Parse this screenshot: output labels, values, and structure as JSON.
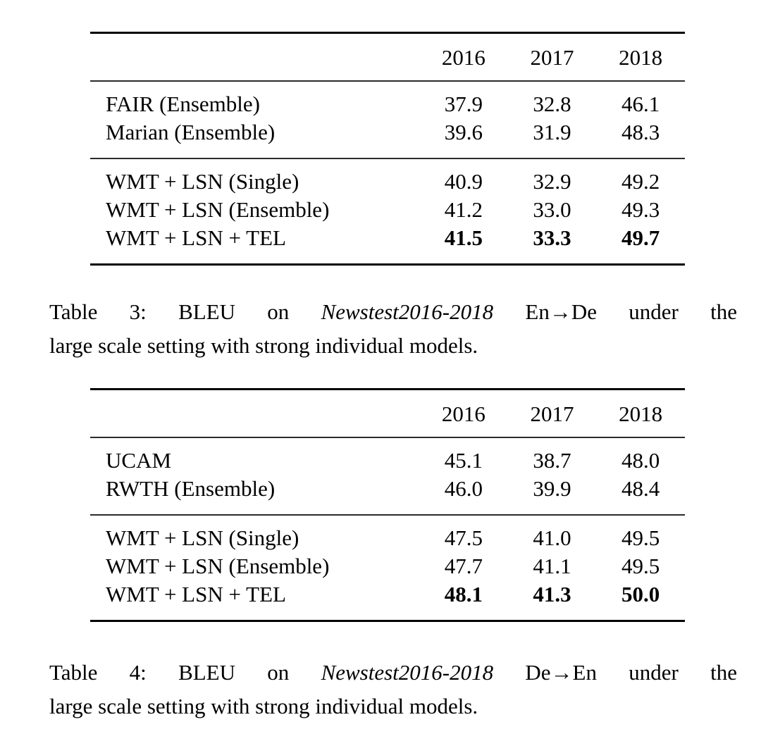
{
  "tables": [
    {
      "name": "table3",
      "columns": [
        "2016",
        "2017",
        "2018"
      ],
      "baselines": [
        {
          "label": "FAIR (Ensemble)",
          "values": [
            "37.9",
            "32.8",
            "46.1"
          ]
        },
        {
          "label": "Marian (Ensemble)",
          "values": [
            "39.6",
            "31.9",
            "48.3"
          ]
        }
      ],
      "ours": [
        {
          "label": "WMT + LSN (Single)",
          "values": [
            "40.9",
            "32.9",
            "49.2"
          ]
        },
        {
          "label": "WMT + LSN (Ensemble)",
          "values": [
            "41.2",
            "33.0",
            "49.3"
          ]
        },
        {
          "label": "WMT + LSN + TEL",
          "values": [
            "41.5",
            "33.3",
            "49.7"
          ],
          "bold_values": true
        }
      ],
      "caption": {
        "line1_prefix": "Table 3: BLEU on ",
        "line1_italic": "Newstest2016-2018",
        "line1_suffix": " En→De under the",
        "line2": "large scale setting with strong individual models."
      }
    },
    {
      "name": "table4",
      "columns": [
        "2016",
        "2017",
        "2018"
      ],
      "baselines": [
        {
          "label": "UCAM",
          "values": [
            "45.1",
            "38.7",
            "48.0"
          ]
        },
        {
          "label": "RWTH (Ensemble)",
          "values": [
            "46.0",
            "39.9",
            "48.4"
          ]
        }
      ],
      "ours": [
        {
          "label": "WMT + LSN (Single)",
          "values": [
            "47.5",
            "41.0",
            "49.5"
          ]
        },
        {
          "label": "WMT + LSN (Ensemble)",
          "values": [
            "47.7",
            "41.1",
            "49.5"
          ]
        },
        {
          "label": "WMT + LSN + TEL",
          "values": [
            "48.1",
            "41.3",
            "50.0"
          ],
          "bold_values": true
        }
      ],
      "caption": {
        "line1_prefix": "Table 4: BLEU on ",
        "line1_italic": "Newstest2016-2018",
        "line1_suffix": " De→En under the",
        "line2": "large scale setting with strong individual models."
      }
    }
  ],
  "colors": {
    "background": "#ffffff",
    "text": "#000000",
    "rule_heavy": "#000000",
    "rule_light": "#2b2b2b"
  }
}
